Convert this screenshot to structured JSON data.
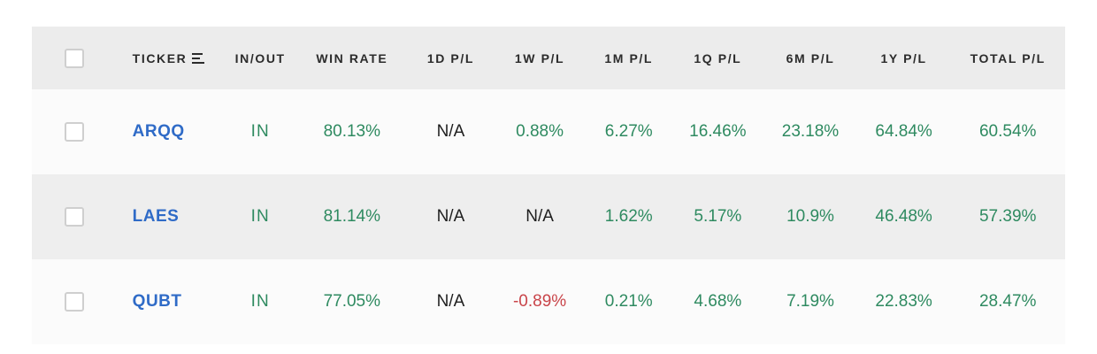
{
  "header": {
    "ticker": "TICKER",
    "inout": "IN/OUT",
    "win_rate": "WIN RATE",
    "pl_1d": "1D P/L",
    "pl_1w": "1W P/L",
    "pl_1m": "1M P/L",
    "pl_1q": "1Q P/L",
    "pl_6m": "6M P/L",
    "pl_1y": "1Y P/L",
    "pl_total": "TOTAL P/L",
    "sort_icon": "sort-lines-icon"
  },
  "colors": {
    "positive": "#2e8a60",
    "negative": "#c9454a",
    "link": "#2f6bc7"
  },
  "rows": [
    {
      "ticker": "ARQQ",
      "inout": "IN",
      "win_rate": "80.13%",
      "pl_1d": "N/A",
      "pl_1w": "0.88%",
      "pl_1m": "6.27%",
      "pl_1q": "16.46%",
      "pl_6m": "23.18%",
      "pl_1y": "64.84%",
      "pl_total": "60.54%"
    },
    {
      "ticker": "LAES",
      "inout": "IN",
      "win_rate": "81.14%",
      "pl_1d": "N/A",
      "pl_1w": "N/A",
      "pl_1m": "1.62%",
      "pl_1q": "5.17%",
      "pl_6m": "10.9%",
      "pl_1y": "46.48%",
      "pl_total": "57.39%"
    },
    {
      "ticker": "QUBT",
      "inout": "IN",
      "win_rate": "77.05%",
      "pl_1d": "N/A",
      "pl_1w": "-0.89%",
      "pl_1m": "0.21%",
      "pl_1q": "4.68%",
      "pl_6m": "7.19%",
      "pl_1y": "22.83%",
      "pl_total": "28.47%"
    }
  ]
}
